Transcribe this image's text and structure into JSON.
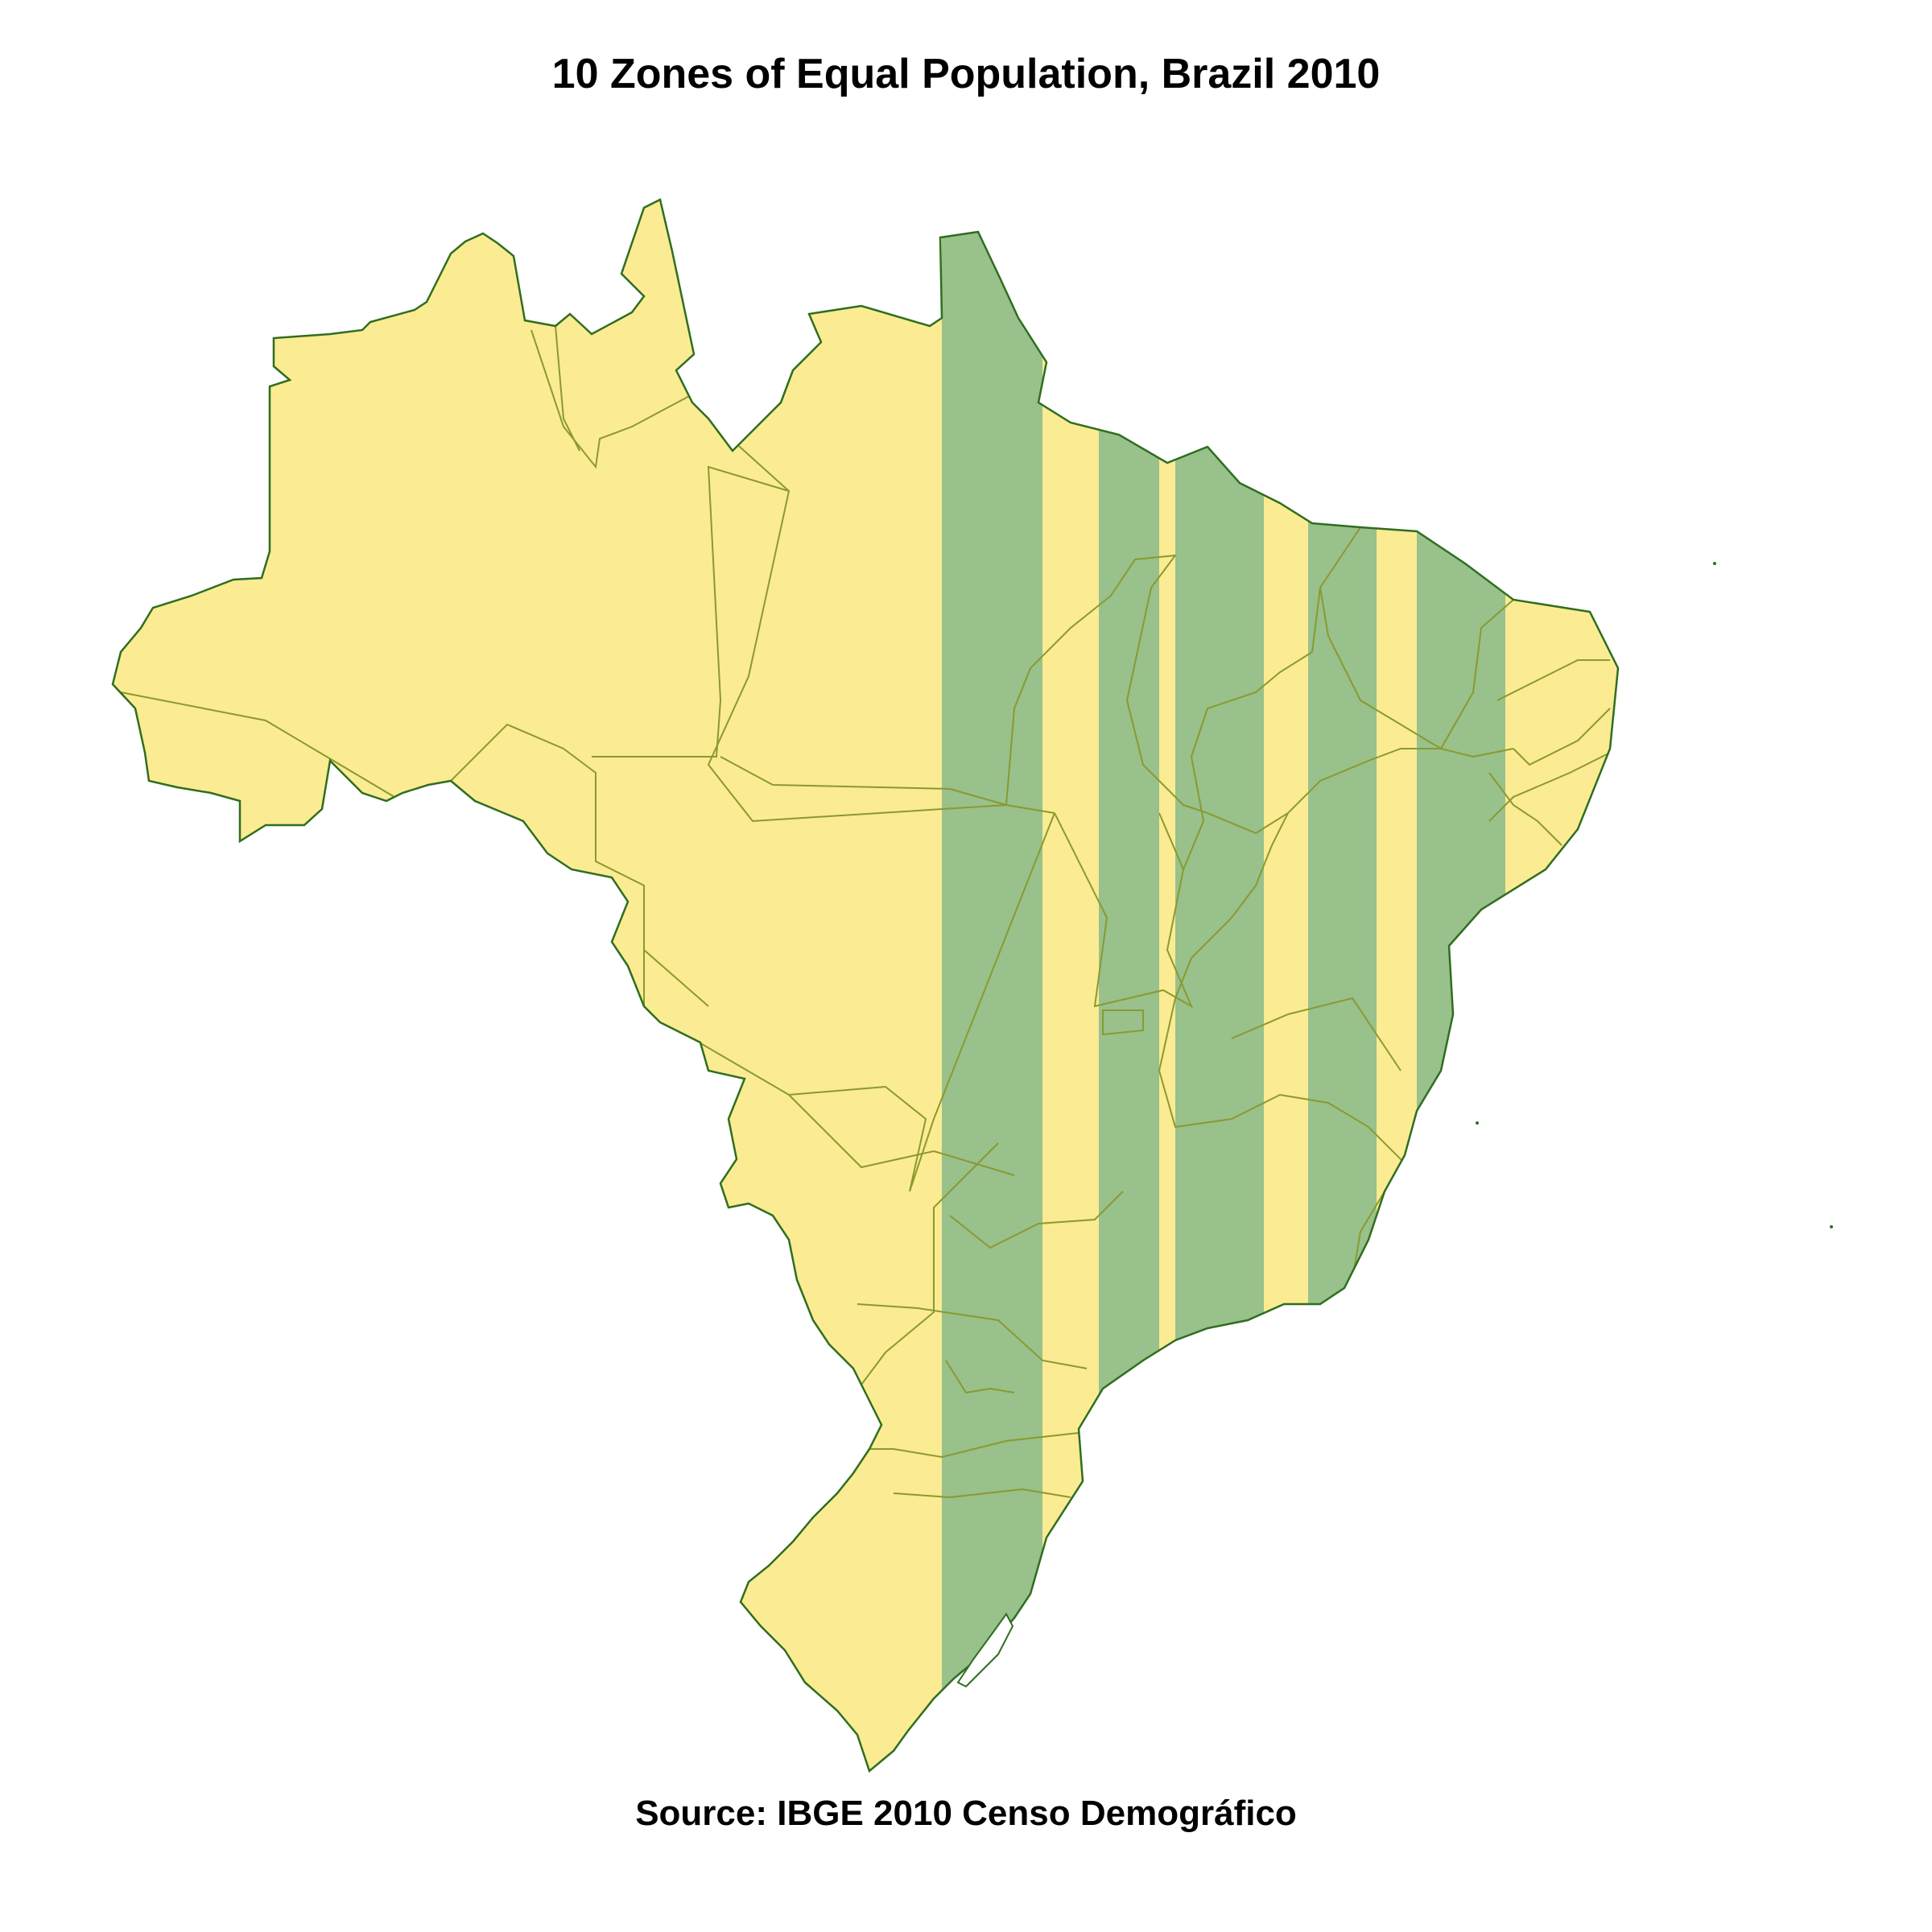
{
  "title": "10 Zones of Equal Population, Brazil 2010",
  "source": "Source: IBGE 2010 Censo Demográfico",
  "zones_count": 10,
  "colors": {
    "zone_light": "#fbeb93",
    "zone_dark": "#98c18c",
    "state_border_light": "#8a9a2e",
    "state_border_dark": "#256a25",
    "background": "#ffffff"
  }
}
